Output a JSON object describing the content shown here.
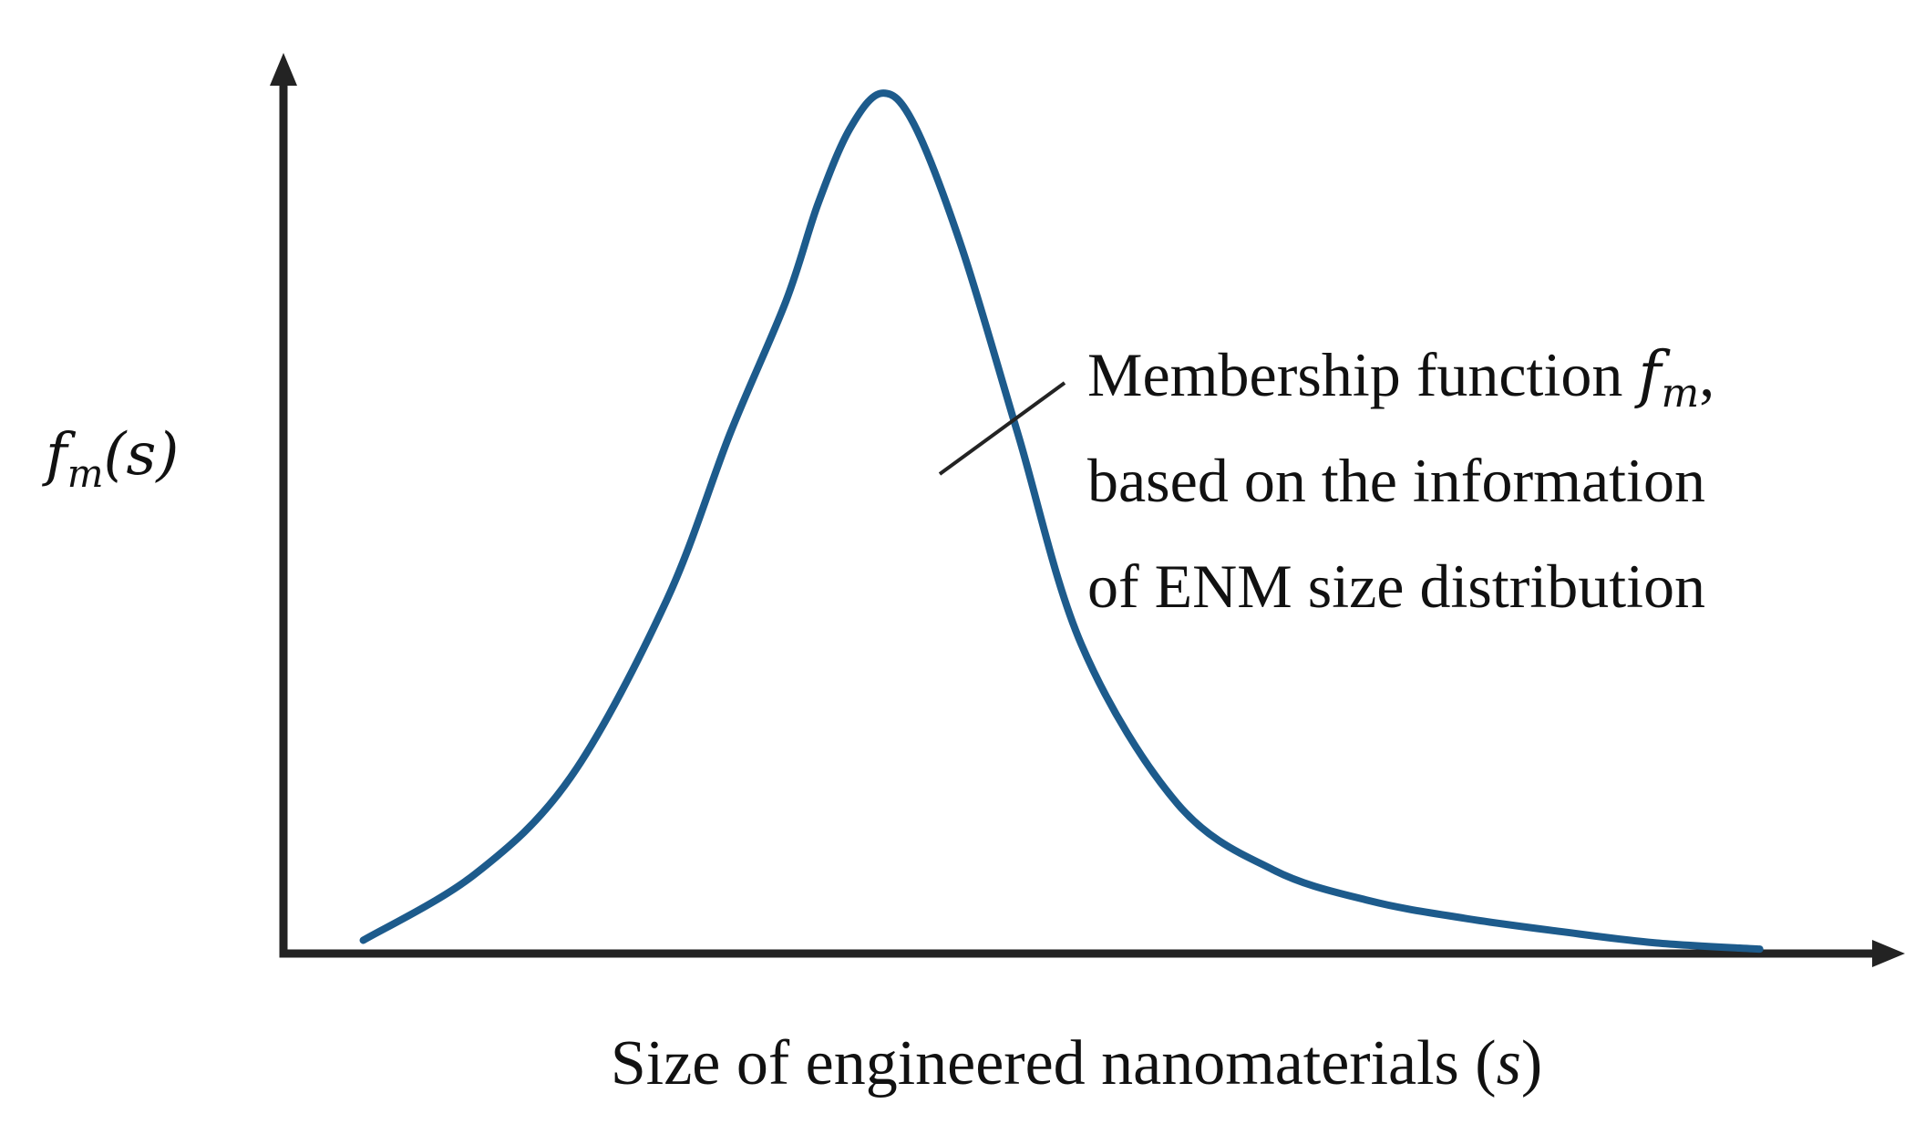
{
  "chart_data": {
    "type": "line",
    "title": "",
    "xlabel": "Size of engineered nanomaterials (s)",
    "ylabel": "fm(s)",
    "xlabel_parts": {
      "prefix": "Size of engineered nanomaterials (",
      "var": "s",
      "suffix": ")"
    },
    "ylabel_parts": {
      "func": "f",
      "sub": "m",
      "arg": "(s)"
    },
    "xlim": [
      0,
      100
    ],
    "ylim": [
      0,
      100
    ],
    "grid": false,
    "legend": "none",
    "series": [
      {
        "name": "Membership function fm",
        "color": "#1d5b8c",
        "x": [
          5,
          12,
          18,
          24,
          28,
          31.5,
          33.5,
          35.5,
          37.5,
          39.5,
          42.5,
          46,
          50,
          56,
          62,
          68,
          74,
          80,
          86,
          92.5
        ],
        "y": [
          1.5,
          9,
          20,
          40,
          59,
          74,
          85,
          93.5,
          97.5,
          94,
          80,
          59,
          35,
          17,
          9.5,
          6,
          4,
          2.5,
          1.2,
          0.5
        ]
      }
    ],
    "annotations": [
      {
        "line1_prefix": "Membership function ",
        "line1_func": "f",
        "line1_sub": "m",
        "line1_suffix": ",",
        "line2": "based on the information",
        "line3": "of ENM size distribution"
      }
    ]
  }
}
